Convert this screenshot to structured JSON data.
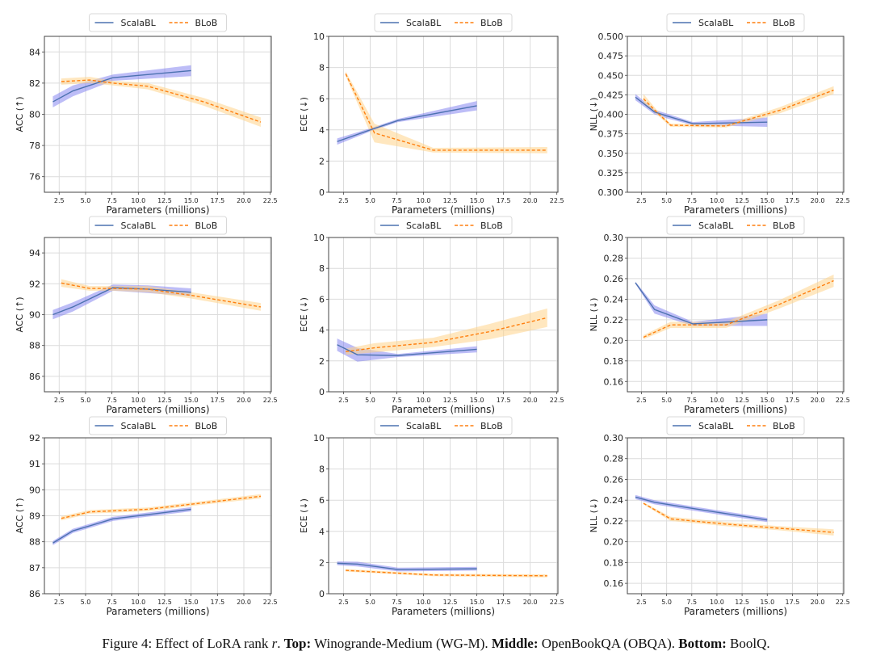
{
  "caption": {
    "prefix": "Figure 4: Effect of LoRA rank ",
    "var": "r",
    "after_var": ". ",
    "top_label": "Top:",
    "top_text": " Winogrande-Medium (WG-M). ",
    "middle_label": "Middle:",
    "middle_text": " OpenBookQA (OBQA). ",
    "bottom_label": "Bottom:",
    "bottom_text": " BoolQ."
  },
  "colors": {
    "scalabl_line": "#4c72b0",
    "scalabl_fill": "#7b7bf0",
    "blob_line": "#ff7f0e",
    "blob_fill": "#ffd38a",
    "grid": "#dcdcdc",
    "axis": "#444444"
  },
  "chart_data": [
    {
      "id": "wgm-acc",
      "type": "line",
      "row": "top",
      "metric": "ACC",
      "xlabel": "Parameters (millions)",
      "ylabel": "ACC (↑)",
      "xlim": [
        1.1,
        22.6
      ],
      "ylim": [
        75,
        85
      ],
      "xticks": [
        "2.5",
        "5.0",
        "7.5",
        "10.0",
        "12.5",
        "15.0",
        "17.5",
        "20.0",
        "22.5"
      ],
      "yticks": [
        "76",
        "78",
        "80",
        "82",
        "84"
      ],
      "grid": true,
      "legend": "top-center",
      "series": [
        {
          "name": "ScalaBL",
          "style": "solid",
          "x": [
            1.9,
            3.8,
            7.6,
            15.0
          ],
          "y": [
            80.8,
            81.5,
            82.35,
            82.8
          ],
          "band": [
            0.35,
            0.35,
            0.2,
            0.35
          ]
        },
        {
          "name": "BLoB",
          "style": "dashed",
          "x": [
            2.7,
            5.4,
            7.6,
            10.9,
            16.2,
            21.6
          ],
          "y": [
            82.1,
            82.2,
            82.0,
            81.8,
            80.8,
            79.5
          ],
          "band": [
            0.2,
            0.2,
            0.15,
            0.2,
            0.25,
            0.3
          ]
        }
      ]
    },
    {
      "id": "wgm-ece",
      "type": "line",
      "row": "top",
      "metric": "ECE",
      "xlabel": "Parameters (millions)",
      "ylabel": "ECE (↓)",
      "xlim": [
        1.1,
        22.6
      ],
      "ylim": [
        0,
        10
      ],
      "xticks": [
        "2.5",
        "5.0",
        "7.5",
        "10.0",
        "12.5",
        "15.0",
        "17.5",
        "20.0",
        "22.5"
      ],
      "yticks": [
        "0",
        "2",
        "4",
        "6",
        "8",
        "10"
      ],
      "grid": true,
      "legend": "top-center",
      "series": [
        {
          "name": "ScalaBL",
          "style": "solid",
          "x": [
            1.9,
            5.0,
            7.6,
            15.0
          ],
          "y": [
            3.25,
            4.0,
            4.6,
            5.55
          ],
          "band": [
            0.2,
            0.1,
            0.1,
            0.3
          ]
        },
        {
          "name": "BLoB",
          "style": "dashed",
          "x": [
            2.7,
            5.4,
            10.9,
            21.6
          ],
          "y": [
            7.6,
            3.8,
            2.7,
            2.7
          ],
          "band": [
            0.15,
            0.6,
            0.15,
            0.2
          ]
        }
      ]
    },
    {
      "id": "wgm-nll",
      "type": "line",
      "row": "top",
      "metric": "NLL",
      "xlabel": "Parameters (millions)",
      "ylabel": "NLL (↓)",
      "xlim": [
        1.1,
        22.6
      ],
      "ylim": [
        0.3,
        0.5
      ],
      "xticks": [
        "2.5",
        "5.0",
        "7.5",
        "10.0",
        "12.5",
        "15.0",
        "17.5",
        "20.0",
        "22.5"
      ],
      "yticks": [
        "0.300",
        "0.325",
        "0.350",
        "0.375",
        "0.400",
        "0.425",
        "0.450",
        "0.475",
        "0.500"
      ],
      "grid": true,
      "legend": "top-center",
      "series": [
        {
          "name": "ScalaBL",
          "style": "solid",
          "x": [
            1.9,
            3.8,
            5.0,
            7.6,
            15.0
          ],
          "y": [
            0.422,
            0.403,
            0.398,
            0.388,
            0.39
          ],
          "band": [
            0.004,
            0.003,
            0.003,
            0.002,
            0.006
          ]
        },
        {
          "name": "BLoB",
          "style": "dashed",
          "x": [
            2.7,
            4.0,
            5.4,
            10.9,
            16.2,
            21.6
          ],
          "y": [
            0.42,
            0.403,
            0.386,
            0.385,
            0.405,
            0.431
          ],
          "band": [
            0.006,
            0.003,
            0.002,
            0.002,
            0.004,
            0.005
          ]
        }
      ]
    },
    {
      "id": "obqa-acc",
      "type": "line",
      "row": "middle",
      "metric": "ACC",
      "xlabel": "Parameters (millions)",
      "ylabel": "ACC (↑)",
      "xlim": [
        1.1,
        22.6
      ],
      "ylim": [
        85,
        95
      ],
      "xticks": [
        "2.5",
        "5.0",
        "7.5",
        "10.0",
        "12.5",
        "15.0",
        "17.5",
        "20.0",
        "22.5"
      ],
      "yticks": [
        "86",
        "88",
        "90",
        "92",
        "94"
      ],
      "grid": true,
      "legend": "top-center",
      "series": [
        {
          "name": "ScalaBL",
          "style": "solid",
          "x": [
            1.9,
            3.8,
            7.6,
            10.9,
            15.0
          ],
          "y": [
            90.0,
            90.5,
            91.75,
            91.65,
            91.45
          ],
          "band": [
            0.3,
            0.3,
            0.2,
            0.25,
            0.25
          ]
        },
        {
          "name": "BLoB",
          "style": "dashed",
          "x": [
            2.7,
            5.4,
            7.6,
            10.9,
            15.0,
            21.6
          ],
          "y": [
            92.05,
            91.7,
            91.7,
            91.65,
            91.25,
            90.5
          ],
          "band": [
            0.25,
            0.15,
            0.15,
            0.2,
            0.2,
            0.25
          ]
        }
      ]
    },
    {
      "id": "obqa-ece",
      "type": "line",
      "row": "middle",
      "metric": "ECE",
      "xlabel": "Parameters (millions)",
      "ylabel": "ECE (↓)",
      "xlim": [
        1.1,
        22.6
      ],
      "ylim": [
        0,
        10
      ],
      "xticks": [
        "2.5",
        "5.0",
        "7.5",
        "10.0",
        "12.5",
        "15.0",
        "17.5",
        "20.0",
        "22.5"
      ],
      "yticks": [
        "0",
        "2",
        "4",
        "6",
        "8",
        "10"
      ],
      "grid": true,
      "legend": "top-center",
      "series": [
        {
          "name": "ScalaBL",
          "style": "solid",
          "x": [
            1.9,
            3.8,
            7.6,
            15.0
          ],
          "y": [
            3.05,
            2.4,
            2.35,
            2.75
          ],
          "band": [
            0.4,
            0.45,
            0.1,
            0.2
          ]
        },
        {
          "name": "BLoB",
          "style": "dashed",
          "x": [
            2.7,
            5.4,
            10.9,
            16.2,
            21.6
          ],
          "y": [
            2.6,
            2.85,
            3.2,
            3.9,
            4.8
          ],
          "band": [
            0.2,
            0.3,
            0.3,
            0.5,
            0.6
          ]
        }
      ]
    },
    {
      "id": "obqa-nll",
      "type": "line",
      "row": "middle",
      "metric": "NLL",
      "xlabel": "Parameters (millions)",
      "ylabel": "NLL (↓)",
      "xlim": [
        1.1,
        22.6
      ],
      "ylim": [
        0.15,
        0.3
      ],
      "xticks": [
        "2.5",
        "5.0",
        "7.5",
        "10.0",
        "12.5",
        "15.0",
        "17.5",
        "20.0",
        "22.5"
      ],
      "yticks": [
        "0.16",
        "0.18",
        "0.20",
        "0.22",
        "0.24",
        "0.26",
        "0.28",
        "0.30"
      ],
      "grid": true,
      "legend": "top-center",
      "series": [
        {
          "name": "ScalaBL",
          "style": "solid",
          "x": [
            1.9,
            3.8,
            7.6,
            15.0
          ],
          "y": [
            0.256,
            0.23,
            0.216,
            0.22
          ],
          "band": [
            0.001,
            0.004,
            0.002,
            0.006
          ]
        },
        {
          "name": "BLoB",
          "style": "dashed",
          "x": [
            2.7,
            5.4,
            10.9,
            16.2,
            21.6
          ],
          "y": [
            0.203,
            0.215,
            0.215,
            0.235,
            0.258
          ],
          "band": [
            0.002,
            0.003,
            0.003,
            0.004,
            0.006
          ]
        }
      ]
    },
    {
      "id": "boolq-acc",
      "type": "line",
      "row": "bottom",
      "metric": "ACC",
      "xlabel": "Parameters (millions)",
      "ylabel": "ACC (↑)",
      "xlim": [
        1.1,
        22.6
      ],
      "ylim": [
        86,
        92
      ],
      "xticks": [
        "2.5",
        "5.0",
        "7.5",
        "10.0",
        "12.5",
        "15.0",
        "17.5",
        "20.0",
        "22.5"
      ],
      "yticks": [
        "86",
        "87",
        "88",
        "89",
        "90",
        "91",
        "92"
      ],
      "grid": true,
      "legend": "top-center",
      "series": [
        {
          "name": "ScalaBL",
          "style": "solid",
          "x": [
            1.9,
            3.8,
            7.6,
            15.0
          ],
          "y": [
            87.95,
            88.42,
            88.88,
            89.25
          ],
          "band": [
            0.08,
            0.08,
            0.08,
            0.08
          ]
        },
        {
          "name": "BLoB",
          "style": "dashed",
          "x": [
            2.7,
            5.4,
            10.9,
            16.2,
            21.6
          ],
          "y": [
            88.9,
            89.15,
            89.25,
            89.5,
            89.75
          ],
          "band": [
            0.08,
            0.07,
            0.07,
            0.07,
            0.08
          ]
        }
      ]
    },
    {
      "id": "boolq-ece",
      "type": "line",
      "row": "bottom",
      "metric": "ECE",
      "xlabel": "Parameters (millions)",
      "ylabel": "ECE (↓)",
      "xlim": [
        1.1,
        22.6
      ],
      "ylim": [
        0,
        10
      ],
      "xticks": [
        "2.5",
        "5.0",
        "7.5",
        "10.0",
        "12.5",
        "15.0",
        "17.5",
        "20.0",
        "22.5"
      ],
      "yticks": [
        "0",
        "2",
        "4",
        "6",
        "8",
        "10"
      ],
      "grid": true,
      "legend": "top-center",
      "series": [
        {
          "name": "ScalaBL",
          "style": "solid",
          "x": [
            1.9,
            3.8,
            7.6,
            15.0
          ],
          "y": [
            1.95,
            1.9,
            1.55,
            1.6
          ],
          "band": [
            0.12,
            0.15,
            0.12,
            0.12
          ]
        },
        {
          "name": "BLoB",
          "style": "dashed",
          "x": [
            2.7,
            5.4,
            10.9,
            21.6
          ],
          "y": [
            1.5,
            1.4,
            1.2,
            1.15
          ],
          "band": [
            0.08,
            0.08,
            0.08,
            0.1
          ]
        }
      ]
    },
    {
      "id": "boolq-nll",
      "type": "line",
      "row": "bottom",
      "metric": "NLL",
      "xlabel": "Parameters (millions)",
      "ylabel": "NLL (↓)",
      "xlim": [
        1.1,
        22.6
      ],
      "ylim": [
        0.15,
        0.3
      ],
      "xticks": [
        "2.5",
        "5.0",
        "7.5",
        "10.0",
        "12.5",
        "15.0",
        "17.5",
        "20.0",
        "22.5"
      ],
      "yticks": [
        "0.16",
        "0.18",
        "0.20",
        "0.22",
        "0.24",
        "0.26",
        "0.28",
        "0.30"
      ],
      "grid": true,
      "legend": "top-center",
      "series": [
        {
          "name": "ScalaBL",
          "style": "solid",
          "x": [
            1.9,
            3.8,
            7.6,
            15.0
          ],
          "y": [
            0.243,
            0.238,
            0.232,
            0.221
          ],
          "band": [
            0.002,
            0.002,
            0.002,
            0.002
          ]
        },
        {
          "name": "BLoB",
          "style": "dashed",
          "x": [
            2.7,
            5.4,
            10.9,
            16.2,
            21.6
          ],
          "y": [
            0.237,
            0.222,
            0.217,
            0.213,
            0.209
          ],
          "band": [
            0.001,
            0.002,
            0.002,
            0.002,
            0.003
          ]
        }
      ]
    }
  ]
}
